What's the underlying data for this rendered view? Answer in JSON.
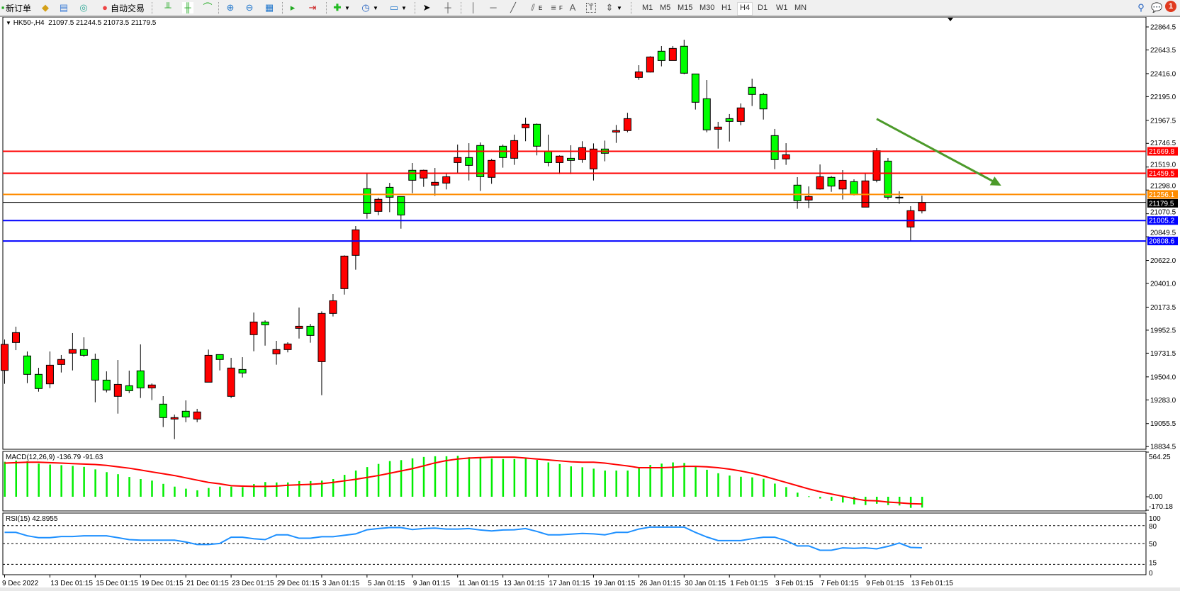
{
  "toolbar": {
    "new_order": "新订单",
    "auto_trading": "自动交易",
    "timeframes": [
      "M1",
      "M5",
      "M15",
      "M30",
      "H1",
      "H4",
      "D1",
      "W1",
      "MN"
    ],
    "selected_timeframe": "H4",
    "notification_count": "1",
    "tools": {
      "fib_e": "E",
      "fib_f": "F",
      "text": "A",
      "label": "T"
    }
  },
  "chart_header": {
    "symbol_label": "HK50-,H4",
    "ohlc": "21097.5 21244.5 21073.5 21179.5"
  },
  "macd_label": "MACD(12,26,9) -136.79 -91.63",
  "rsi_label": "RSI(15) 42.8955",
  "colors": {
    "up": "#ff0000",
    "down": "#00ff00",
    "macd_hist": "#00ee00",
    "signal": "#ff0000",
    "rsi": "#1e90ff",
    "arrow": "#4c9a2a"
  },
  "chart_data": [
    {
      "type": "candlestick",
      "symbol": "HK50-",
      "timeframe": "H4",
      "ylim": [
        18834.5,
        22864.5
      ],
      "price_ticks": [
        "22864.5",
        "22643.5",
        "22416.0",
        "22195.0",
        "21967.5",
        "21746.5",
        "21519.0",
        "21298.0",
        "21070.5",
        "20849.5",
        "20622.0",
        "20401.0",
        "20173.5",
        "19952.5",
        "19731.5",
        "19504.0",
        "19283.0",
        "19055.5",
        "18834.5"
      ],
      "date_labels": [
        "9 Dec 2022",
        "13 Dec 01:15",
        "15 Dec 01:15",
        "19 Dec 01:15",
        "21 Dec 01:15",
        "23 Dec 01:15",
        "29 Dec 01:15",
        "3 Jan 01:15",
        "5 Jan 01:15",
        "9 Jan 01:15",
        "11 Jan 01:15",
        "13 Jan 01:15",
        "17 Jan 01:15",
        "19 Jan 01:15",
        "26 Jan 01:15",
        "30 Jan 01:15",
        "1 Feb 01:15",
        "3 Feb 01:15",
        "7 Feb 01:15",
        "9 Feb 01:15",
        "13 Feb 01:15"
      ],
      "ohlc": [
        [
          19566,
          19863,
          19437,
          19816
        ],
        [
          19834,
          19986,
          19761,
          19929
        ],
        [
          19705,
          19748,
          19444,
          19528
        ],
        [
          19528,
          19591,
          19362,
          19392
        ],
        [
          19437,
          19748,
          19396,
          19616
        ],
        [
          19623,
          19714,
          19546,
          19671
        ],
        [
          19732,
          19925,
          19566,
          19766
        ],
        [
          19766,
          19884,
          19696,
          19711
        ],
        [
          19671,
          19727,
          19260,
          19473
        ],
        [
          19473,
          19557,
          19355,
          19378
        ],
        [
          19317,
          19666,
          19151,
          19432
        ],
        [
          19419,
          19564,
          19349,
          19371
        ],
        [
          19562,
          19816,
          19301,
          19398
        ],
        [
          19398,
          19441,
          19281,
          19426
        ],
        [
          19242,
          19319,
          19022,
          19113
        ],
        [
          19099,
          19142,
          18906,
          19113
        ],
        [
          19174,
          19278,
          19069,
          19119
        ],
        [
          19099,
          19197,
          19069,
          19167
        ],
        [
          19453,
          19766,
          19453,
          19711
        ],
        [
          19718,
          19718,
          19566,
          19671
        ],
        [
          19317,
          19687,
          19301,
          19589
        ],
        [
          19575,
          19693,
          19498,
          19541
        ],
        [
          19909,
          20122,
          19750,
          20031
        ],
        [
          20031,
          20047,
          19804,
          20004
        ],
        [
          19725,
          19850,
          19621,
          19766
        ],
        [
          19766,
          19836,
          19739,
          19820
        ],
        [
          19970,
          20170,
          19872,
          19990
        ],
        [
          19990,
          20013,
          19832,
          19902
        ],
        [
          19650,
          20133,
          19328,
          20113
        ],
        [
          20113,
          20299,
          20084,
          20235
        ],
        [
          20351,
          20671,
          20294,
          20664
        ],
        [
          20671,
          20952,
          20533,
          20916
        ],
        [
          21311,
          21460,
          21023,
          21073
        ],
        [
          21093,
          21225,
          21057,
          21209
        ],
        [
          21324,
          21367,
          21086,
          21229
        ],
        [
          21236,
          21236,
          20927,
          21059
        ],
        [
          21488,
          21558,
          21268,
          21392
        ],
        [
          21413,
          21494,
          21329,
          21488
        ],
        [
          21345,
          21510,
          21243,
          21372
        ],
        [
          21365,
          21454,
          21304,
          21426
        ],
        [
          21562,
          21735,
          21454,
          21610
        ],
        [
          21610,
          21748,
          21390,
          21535
        ],
        [
          21726,
          21755,
          21290,
          21426
        ],
        [
          21420,
          21597,
          21358,
          21583
        ],
        [
          21719,
          21735,
          21513,
          21610
        ],
        [
          21603,
          21830,
          21540,
          21773
        ],
        [
          21896,
          21993,
          21767,
          21930
        ],
        [
          21930,
          21937,
          21631,
          21719
        ],
        [
          21671,
          21830,
          21526,
          21562
        ],
        [
          21562,
          21631,
          21451,
          21624
        ],
        [
          21603,
          21728,
          21451,
          21583
        ],
        [
          21590,
          21767,
          21560,
          21705
        ],
        [
          21501,
          21746,
          21390,
          21692
        ],
        [
          21692,
          21773,
          21574,
          21651
        ],
        [
          21855,
          21923,
          21751,
          21869
        ],
        [
          21869,
          22040,
          21853,
          21984
        ],
        [
          22379,
          22497,
          22356,
          22433
        ],
        [
          22431,
          22583,
          22427,
          22576
        ],
        [
          22631,
          22681,
          22486,
          22542
        ],
        [
          22542,
          22681,
          22542,
          22658
        ],
        [
          22679,
          22742,
          22411,
          22420
        ],
        [
          22413,
          22413,
          22071,
          22141
        ],
        [
          22175,
          22354,
          21853,
          21876
        ],
        [
          21882,
          21953,
          21696,
          21903
        ],
        [
          21984,
          22028,
          21764,
          21957
        ],
        [
          21957,
          22130,
          21921,
          22087
        ],
        [
          22284,
          22368,
          22105,
          22216
        ],
        [
          22216,
          22232,
          21975,
          22077
        ],
        [
          21821,
          21885,
          21499,
          21590
        ],
        [
          21597,
          21748,
          21540,
          21637
        ],
        [
          21345,
          21422,
          21118,
          21195
        ],
        [
          21202,
          21333,
          21125,
          21236
        ],
        [
          21308,
          21544,
          21302,
          21426
        ],
        [
          21420,
          21433,
          21281,
          21336
        ],
        [
          21308,
          21490,
          21207,
          21392
        ],
        [
          21379,
          21401,
          21247,
          21254
        ],
        [
          21134,
          21456,
          21134,
          21386
        ],
        [
          21392,
          21701,
          21372,
          21676
        ],
        [
          21576,
          21606,
          21207,
          21229
        ],
        [
          21229,
          21286,
          21166,
          21222
        ],
        [
          20943,
          21143,
          20814,
          21100
        ],
        [
          21097.5,
          21244.5,
          21073.5,
          21179.5
        ]
      ],
      "levels": [
        {
          "price": 21669.8,
          "label": "21669.8",
          "color": "#ff0000"
        },
        {
          "price": 21459.5,
          "label": "21459.5",
          "color": "#ff0000"
        },
        {
          "price": 21256.1,
          "label": "21256.1",
          "color": "#ff8c00"
        },
        {
          "price": 21179.5,
          "label": "21179.5",
          "color": "#000000"
        },
        {
          "price": 21005.2,
          "label": "21005.2",
          "color": "#0000ff"
        },
        {
          "price": 20808.6,
          "label": "20808.6",
          "color": "#0000ff"
        }
      ],
      "trend_arrow": {
        "from": {
          "candle": 77,
          "price": 21981
        },
        "to": {
          "candle": 88,
          "price": 21340
        }
      }
    },
    {
      "type": "bar+line",
      "name": "MACD(12,26,9)",
      "ylim": [
        -170.18,
        564.25
      ],
      "tick_labels": [
        "564.25",
        "0.00",
        "-170.18"
      ],
      "histogram": [
        442,
        457,
        451,
        419,
        407,
        399,
        390,
        378,
        346,
        311,
        285,
        250,
        224,
        204,
        163,
        128,
        102,
        81,
        111,
        128,
        128,
        122,
        160,
        186,
        181,
        181,
        198,
        198,
        204,
        224,
        277,
        331,
        375,
        415,
        451,
        463,
        486,
        503,
        512,
        512,
        518,
        500,
        489,
        483,
        477,
        477,
        483,
        466,
        434,
        414,
        384,
        373,
        355,
        331,
        331,
        331,
        361,
        402,
        419,
        434,
        427,
        390,
        341,
        297,
        268,
        253,
        245,
        227,
        166,
        122,
        52,
        6,
        -23,
        -52,
        -73,
        -96,
        -105,
        -88,
        -105,
        -110,
        -140,
        -136.79
      ],
      "signal": [
        425,
        431,
        437,
        437,
        431,
        425,
        419,
        413,
        407,
        396,
        378,
        361,
        338,
        314,
        291,
        268,
        239,
        210,
        181,
        163,
        140,
        134,
        131,
        131,
        134,
        146,
        151,
        157,
        166,
        181,
        201,
        221,
        244,
        268,
        297,
        326,
        355,
        390,
        428,
        457,
        477,
        489,
        495,
        500,
        500,
        500,
        489,
        477,
        466,
        454,
        442,
        437,
        437,
        425,
        407,
        390,
        367,
        367,
        367,
        373,
        384,
        384,
        378,
        367,
        349,
        326,
        297,
        262,
        221,
        181,
        140,
        99,
        64,
        35,
        6,
        -23,
        -47,
        -52,
        -67,
        -76,
        -87,
        -91.63
      ]
    },
    {
      "type": "line",
      "name": "RSI(15)",
      "ylim": [
        0,
        100
      ],
      "tick_labels": [
        "100",
        "80",
        "50",
        "15",
        "0"
      ],
      "levels": [
        80,
        50,
        15
      ],
      "values": [
        68.7,
        68.7,
        63.0,
        59.8,
        59.8,
        61.8,
        61.8,
        63.0,
        63.0,
        63.0,
        59.8,
        56.5,
        55.7,
        55.7,
        55.7,
        55.7,
        52.5,
        48.4,
        48.4,
        50.1,
        60.6,
        60.6,
        58.1,
        56.5,
        64.6,
        64.6,
        58.9,
        58.9,
        61.4,
        61.4,
        63.8,
        66.2,
        73.1,
        75.1,
        76.8,
        76.8,
        73.5,
        75.1,
        75.9,
        74.3,
        74.3,
        75.1,
        72.7,
        71.1,
        72.7,
        73.1,
        75.1,
        70.3,
        64.6,
        64.6,
        65.8,
        67.0,
        66.2,
        64.6,
        68.7,
        68.7,
        74.3,
        77.6,
        77.6,
        77.6,
        77.6,
        68.7,
        61.0,
        54.9,
        54.9,
        54.9,
        58.1,
        60.6,
        60.6,
        54.9,
        46.0,
        46.0,
        38.7,
        38.7,
        42.7,
        41.9,
        42.7,
        41.1,
        45.2,
        50.8,
        43.5,
        42.9
      ]
    }
  ]
}
